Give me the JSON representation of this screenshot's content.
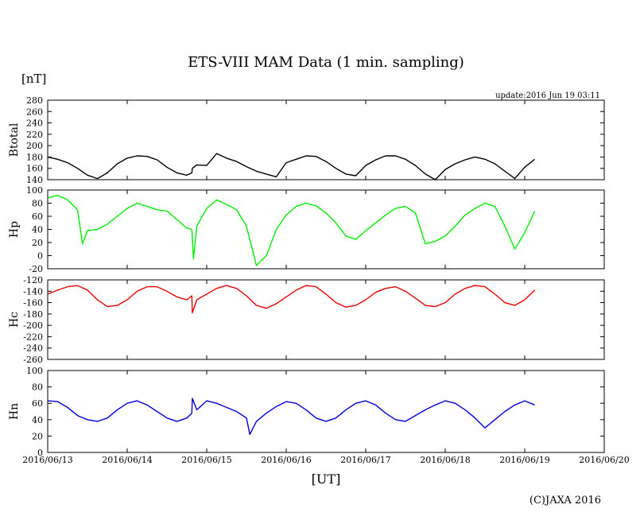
{
  "title": "ETS-VIII MAM Data (1 min. sampling)",
  "unit_label": "[nT]",
  "update_text": "update:2016 Jun 19 03:11",
  "x_axis_label": "[UT]",
  "copyright": "(C)JAXA 2016",
  "chart_data": [
    {
      "type": "line",
      "name": "Btotal",
      "ylabel": "Btotal",
      "color": "#000000",
      "ylim": [
        140,
        280
      ],
      "yticks": [
        280,
        260,
        240,
        220,
        200,
        180,
        160,
        140
      ],
      "xlim": [
        "2016-06-13",
        "2016-06-20"
      ],
      "xticks": [
        "2016/06/13",
        "2016/06/14",
        "2016/06/15",
        "2016/06/16",
        "2016/06/17",
        "2016/06/18",
        "2016/06/19",
        "2016/06/20"
      ],
      "series": [
        {
          "x": [
            "2016-06-13 00:00",
            "2016-06-13 03:00",
            "2016-06-13 06:00",
            "2016-06-13 09:00",
            "2016-06-13 12:00",
            "2016-06-13 15:00",
            "2016-06-13 18:00",
            "2016-06-13 21:00",
            "2016-06-14 00:00",
            "2016-06-14 03:00",
            "2016-06-14 06:00",
            "2016-06-14 09:00",
            "2016-06-14 12:00",
            "2016-06-14 15:00",
            "2016-06-14 18:00",
            "2016-06-14 19:30",
            "2016-06-14 19:40",
            "2016-06-14 21:00",
            "2016-06-15 00:00",
            "2016-06-15 03:00",
            "2016-06-15 06:00",
            "2016-06-15 09:00",
            "2016-06-15 12:00",
            "2016-06-15 15:00",
            "2016-06-15 18:00",
            "2016-06-15 21:00",
            "2016-06-16 00:00",
            "2016-06-16 03:00",
            "2016-06-16 06:00",
            "2016-06-16 09:00",
            "2016-06-16 12:00",
            "2016-06-16 15:00",
            "2016-06-16 18:00",
            "2016-06-16 21:00",
            "2016-06-17 00:00",
            "2016-06-17 03:00",
            "2016-06-17 06:00",
            "2016-06-17 09:00",
            "2016-06-17 12:00",
            "2016-06-17 15:00",
            "2016-06-17 18:00",
            "2016-06-17 21:00",
            "2016-06-18 00:00",
            "2016-06-18 03:00",
            "2016-06-18 06:00",
            "2016-06-18 09:00",
            "2016-06-18 12:00",
            "2016-06-18 15:00",
            "2016-06-18 18:00",
            "2016-06-18 21:00",
            "2016-06-19 00:00",
            "2016-06-19 03:00"
          ],
          "values": [
            180,
            176,
            170,
            160,
            148,
            142,
            152,
            168,
            178,
            182,
            181,
            175,
            162,
            152,
            148,
            152,
            160,
            166,
            165,
            186,
            178,
            172,
            163,
            155,
            150,
            145,
            170,
            176,
            182,
            181,
            172,
            160,
            150,
            147,
            165,
            175,
            182,
            182,
            176,
            165,
            150,
            140,
            158,
            168,
            175,
            180,
            176,
            168,
            155,
            142,
            162,
            176
          ]
        }
      ]
    },
    {
      "type": "line",
      "name": "Hp",
      "ylabel": "Hp",
      "color": "#00ee00",
      "ylim": [
        -20,
        100
      ],
      "yticks": [
        100,
        80,
        60,
        40,
        20,
        0,
        -20
      ],
      "xlim": [
        "2016-06-13",
        "2016-06-20"
      ],
      "series": [
        {
          "x": [
            "2016-06-13 00:00",
            "2016-06-13 03:00",
            "2016-06-13 06:00",
            "2016-06-13 09:00",
            "2016-06-13 10:30",
            "2016-06-13 12:00",
            "2016-06-13 15:00",
            "2016-06-13 18:00",
            "2016-06-13 21:00",
            "2016-06-14 00:00",
            "2016-06-14 03:00",
            "2016-06-14 06:00",
            "2016-06-14 09:00",
            "2016-06-14 12:00",
            "2016-06-14 15:00",
            "2016-06-14 18:00",
            "2016-06-14 19:30",
            "2016-06-14 20:00",
            "2016-06-14 21:00",
            "2016-06-15 00:00",
            "2016-06-15 03:00",
            "2016-06-15 06:00",
            "2016-06-15 09:00",
            "2016-06-15 12:00",
            "2016-06-15 15:00",
            "2016-06-15 18:00",
            "2016-06-15 21:00",
            "2016-06-16 00:00",
            "2016-06-16 03:00",
            "2016-06-16 06:00",
            "2016-06-16 09:00",
            "2016-06-16 12:00",
            "2016-06-16 15:00",
            "2016-06-16 18:00",
            "2016-06-16 21:00",
            "2016-06-17 00:00",
            "2016-06-17 03:00",
            "2016-06-17 06:00",
            "2016-06-17 09:00",
            "2016-06-17 12:00",
            "2016-06-17 15:00",
            "2016-06-17 18:00",
            "2016-06-17 21:00",
            "2016-06-18 00:00",
            "2016-06-18 03:00",
            "2016-06-18 06:00",
            "2016-06-18 09:00",
            "2016-06-18 12:00",
            "2016-06-18 15:00",
            "2016-06-18 18:00",
            "2016-06-18 21:00",
            "2016-06-19 00:00",
            "2016-06-19 03:00"
          ],
          "values": [
            88,
            92,
            85,
            70,
            18,
            38,
            40,
            48,
            60,
            72,
            80,
            75,
            70,
            68,
            55,
            42,
            40,
            -5,
            45,
            72,
            85,
            78,
            70,
            45,
            -15,
            0,
            40,
            62,
            75,
            80,
            76,
            65,
            50,
            30,
            25,
            38,
            50,
            62,
            72,
            75,
            65,
            18,
            22,
            30,
            45,
            62,
            72,
            80,
            75,
            45,
            10,
            35,
            68
          ]
        }
      ]
    },
    {
      "type": "line",
      "name": "Hc",
      "ylabel": "Hc",
      "color": "#ee0000",
      "ylim": [
        -260,
        -120
      ],
      "yticks": [
        -120,
        -140,
        -160,
        -180,
        -200,
        -220,
        -240,
        -260
      ],
      "xlim": [
        "2016-06-13",
        "2016-06-20"
      ],
      "series": [
        {
          "x": [
            "2016-06-13 00:00",
            "2016-06-13 03:00",
            "2016-06-13 06:00",
            "2016-06-13 09:00",
            "2016-06-13 12:00",
            "2016-06-13 15:00",
            "2016-06-13 18:00",
            "2016-06-13 21:00",
            "2016-06-14 00:00",
            "2016-06-14 03:00",
            "2016-06-14 06:00",
            "2016-06-14 09:00",
            "2016-06-14 12:00",
            "2016-06-14 15:00",
            "2016-06-14 18:00",
            "2016-06-14 19:30",
            "2016-06-14 19:40",
            "2016-06-14 21:00",
            "2016-06-15 00:00",
            "2016-06-15 03:00",
            "2016-06-15 06:00",
            "2016-06-15 09:00",
            "2016-06-15 12:00",
            "2016-06-15 15:00",
            "2016-06-15 18:00",
            "2016-06-15 21:00",
            "2016-06-16 00:00",
            "2016-06-16 03:00",
            "2016-06-16 06:00",
            "2016-06-16 09:00",
            "2016-06-16 12:00",
            "2016-06-16 15:00",
            "2016-06-16 18:00",
            "2016-06-16 21:00",
            "2016-06-17 00:00",
            "2016-06-17 03:00",
            "2016-06-17 06:00",
            "2016-06-17 09:00",
            "2016-06-17 12:00",
            "2016-06-17 15:00",
            "2016-06-17 18:00",
            "2016-06-17 21:00",
            "2016-06-18 00:00",
            "2016-06-18 03:00",
            "2016-06-18 06:00",
            "2016-06-18 09:00",
            "2016-06-18 12:00",
            "2016-06-18 15:00",
            "2016-06-18 18:00",
            "2016-06-18 21:00",
            "2016-06-19 00:00",
            "2016-06-19 03:00"
          ],
          "values": [
            -145,
            -138,
            -132,
            -130,
            -138,
            -155,
            -167,
            -165,
            -155,
            -140,
            -132,
            -132,
            -140,
            -150,
            -155,
            -148,
            -178,
            -155,
            -145,
            -135,
            -130,
            -135,
            -148,
            -165,
            -170,
            -162,
            -150,
            -138,
            -130,
            -132,
            -145,
            -160,
            -168,
            -165,
            -155,
            -142,
            -135,
            -132,
            -140,
            -152,
            -165,
            -167,
            -160,
            -145,
            -135,
            -130,
            -132,
            -145,
            -160,
            -165,
            -155,
            -138
          ]
        }
      ]
    },
    {
      "type": "line",
      "name": "Hn",
      "ylabel": "Hn",
      "color": "#0000dd",
      "ylim": [
        0,
        100
      ],
      "yticks": [
        100,
        80,
        60,
        40,
        20,
        0
      ],
      "xlim": [
        "2016-06-13",
        "2016-06-20"
      ],
      "series": [
        {
          "x": [
            "2016-06-13 00:00",
            "2016-06-13 03:00",
            "2016-06-13 06:00",
            "2016-06-13 09:00",
            "2016-06-13 12:00",
            "2016-06-13 15:00",
            "2016-06-13 18:00",
            "2016-06-13 21:00",
            "2016-06-14 00:00",
            "2016-06-14 03:00",
            "2016-06-14 06:00",
            "2016-06-14 09:00",
            "2016-06-14 12:00",
            "2016-06-14 15:00",
            "2016-06-14 18:00",
            "2016-06-14 19:30",
            "2016-06-14 19:40",
            "2016-06-14 21:00",
            "2016-06-15 00:00",
            "2016-06-15 03:00",
            "2016-06-15 06:00",
            "2016-06-15 09:00",
            "2016-06-15 12:00",
            "2016-06-15 13:00",
            "2016-06-15 15:00",
            "2016-06-15 18:00",
            "2016-06-15 21:00",
            "2016-06-16 00:00",
            "2016-06-16 03:00",
            "2016-06-16 06:00",
            "2016-06-16 09:00",
            "2016-06-16 12:00",
            "2016-06-16 15:00",
            "2016-06-16 18:00",
            "2016-06-16 21:00",
            "2016-06-17 00:00",
            "2016-06-17 03:00",
            "2016-06-17 06:00",
            "2016-06-17 09:00",
            "2016-06-17 12:00",
            "2016-06-17 15:00",
            "2016-06-17 18:00",
            "2016-06-17 21:00",
            "2016-06-18 00:00",
            "2016-06-18 03:00",
            "2016-06-18 06:00",
            "2016-06-18 09:00",
            "2016-06-18 12:00",
            "2016-06-18 15:00",
            "2016-06-18 18:00",
            "2016-06-18 21:00",
            "2016-06-19 00:00",
            "2016-06-19 03:00"
          ],
          "values": [
            63,
            62,
            55,
            45,
            40,
            38,
            42,
            52,
            60,
            63,
            58,
            50,
            42,
            38,
            42,
            48,
            66,
            52,
            63,
            60,
            55,
            50,
            42,
            22,
            38,
            48,
            56,
            62,
            60,
            52,
            42,
            38,
            42,
            52,
            60,
            63,
            58,
            48,
            40,
            38,
            45,
            52,
            58,
            63,
            60,
            52,
            42,
            30,
            40,
            50,
            58,
            63,
            58
          ]
        }
      ]
    }
  ]
}
